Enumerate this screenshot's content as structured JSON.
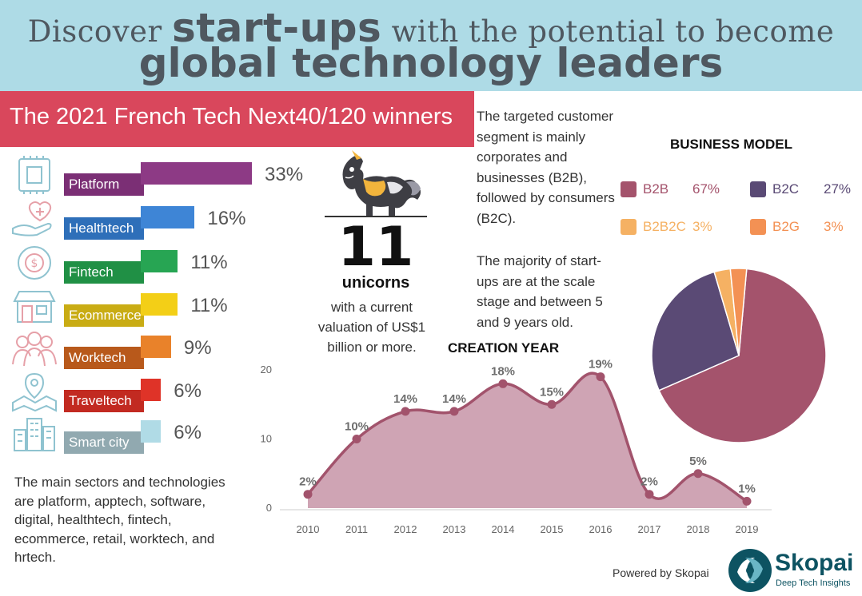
{
  "header": {
    "line1_pre": "Discover ",
    "line1_emph": "start-ups",
    "line1_post": " with the potential to become",
    "line2": "global technology leaders"
  },
  "banner": {
    "title": "The 2021 French Tech Next40/120 winners"
  },
  "sectors_summary": "The main sectors and technologies are platform, apptech, software, digital, healthtech, fintech, ecommerce, retail, worktech, and hrtech.",
  "unicorns": {
    "count": "11",
    "label": "unicorns",
    "description": "with a current valuation of US$1 billion or more."
  },
  "paragraphs": {
    "segment": "The targeted customer segment is mainly corporates and businesses (B2B), followed by consumers (B2C).",
    "stage": "The majority of start-ups are at the scale stage and between 5 and 9 years old."
  },
  "footer": {
    "powered_by": "Powered by Skopai",
    "logo_name": "Skopai",
    "logo_tagline": "Deep Tech Insights"
  },
  "colors": {
    "header_bg": "#aedbe6",
    "banner_bg": "#d9475c",
    "area_fill": "#cfa4b4",
    "area_line": "#a2536c"
  },
  "chart_data": [
    {
      "type": "bar",
      "orientation": "horizontal",
      "categories": [
        "Platform",
        "Healthtech",
        "Fintech",
        "Ecommerce",
        "Worktech",
        "Traveltech",
        "Smart city"
      ],
      "values": [
        33,
        16,
        11,
        11,
        9,
        6,
        6
      ],
      "value_labels": [
        "33%",
        "16%",
        "11%",
        "11%",
        "9%",
        "6%",
        "6%"
      ],
      "colors": [
        "#8d3a85",
        "#3e85d6",
        "#27a553",
        "#f3cf17",
        "#e9822a",
        "#df3328",
        "#b0dbe6"
      ],
      "label_colors": [
        "#7b2f75",
        "#2e6fb9",
        "#209045",
        "#c9ac14",
        "#b8591b",
        "#c22a21",
        "#91a9b0"
      ],
      "icons": [
        "chip-icon",
        "healthcare-hand-icon",
        "dollar-cycle-icon",
        "storefront-icon",
        "team-people-icon",
        "map-pin-icon",
        "city-buildings-icon"
      ]
    },
    {
      "type": "pie",
      "title": "BUSINESS MODEL",
      "labels": [
        "B2B",
        "B2C",
        "B2B2C",
        "B2G"
      ],
      "values": [
        67,
        27,
        3,
        3
      ],
      "value_labels": [
        "67%",
        "27%",
        "3%",
        "3%"
      ],
      "colors": [
        "#a4536c",
        "#5a4a75",
        "#f5b163",
        "#f39154"
      ],
      "legend_position": "top"
    },
    {
      "type": "area",
      "title": "CREATION YEAR",
      "x": [
        "2010",
        "2011",
        "2012",
        "2013",
        "2014",
        "2015",
        "2016",
        "2017",
        "2018",
        "2019"
      ],
      "values": [
        2,
        10,
        14,
        14,
        18,
        15,
        19,
        2,
        5,
        1
      ],
      "value_labels": [
        "2%",
        "10%",
        "14%",
        "14%",
        "18%",
        "15%",
        "19%",
        "2%",
        "5%",
        "1%"
      ],
      "yticks": [
        "0",
        "10",
        "20"
      ],
      "ylim": [
        0,
        20
      ],
      "grid": false
    }
  ]
}
